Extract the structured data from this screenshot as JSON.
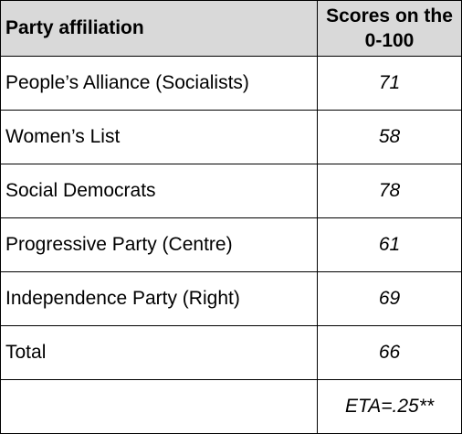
{
  "table": {
    "headers": [
      "Party affiliation",
      "Scores on the 0-100"
    ],
    "rows": [
      {
        "party": "People’s Alliance (Socialists)",
        "score": "71"
      },
      {
        "party": "Women’s List",
        "score": "58"
      },
      {
        "party": "Social Democrats",
        "score": "78"
      },
      {
        "party": "Progressive Party (Centre)",
        "score": "61"
      },
      {
        "party": "Independence Party (Right)",
        "score": "69"
      },
      {
        "party": "Total",
        "score": "66"
      },
      {
        "party": "",
        "score": "ETA=.25**"
      }
    ],
    "header_bg": "#d9d9d9"
  }
}
